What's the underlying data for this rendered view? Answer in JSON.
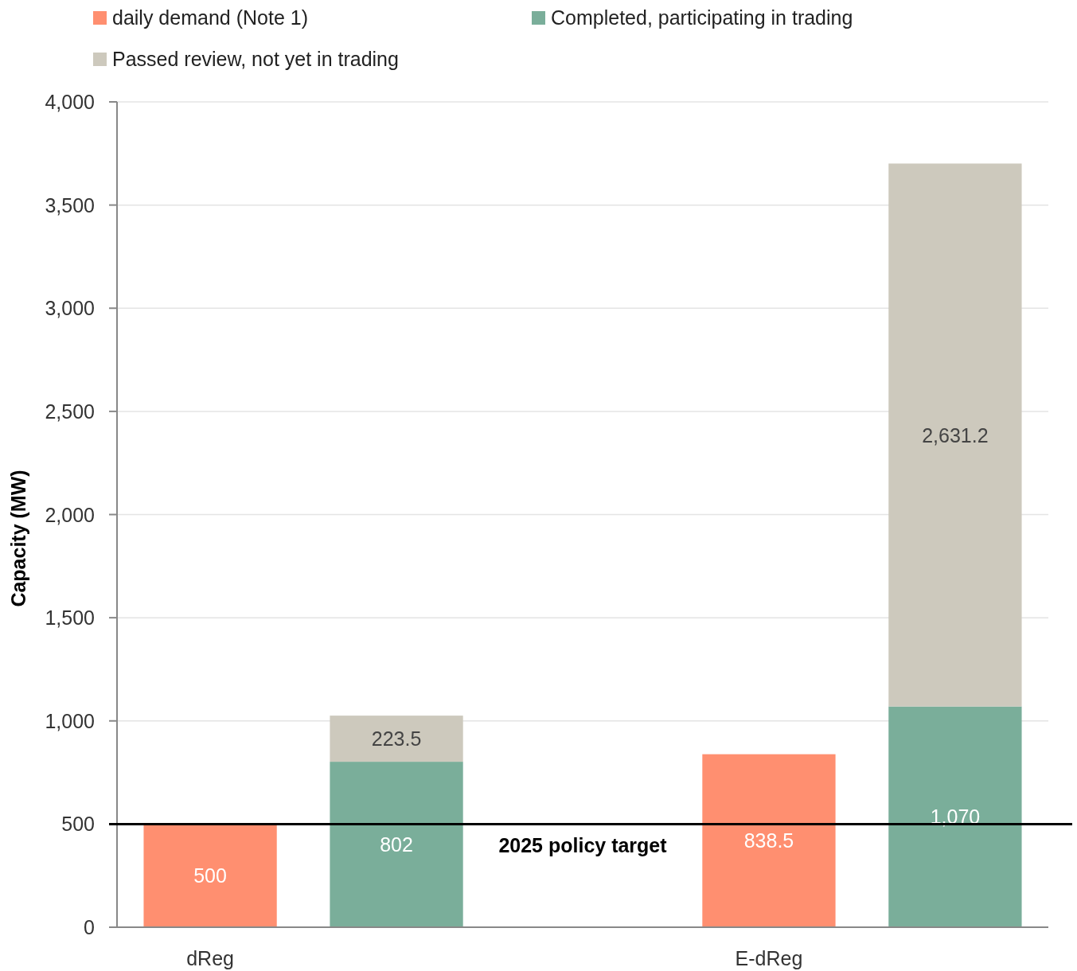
{
  "chart_data": {
    "type": "bar",
    "stacked": true,
    "ylabel": "Capacity (MW)",
    "categories": [
      "dReg",
      null,
      null,
      "E-dReg",
      null
    ],
    "series": [
      {
        "name": "daily demand (Note 1)",
        "color": "#ff8f70",
        "values": [
          500,
          null,
          null,
          838.5,
          null
        ],
        "value_labels": [
          "500",
          null,
          null,
          "838.5",
          null
        ]
      },
      {
        "name": "Completed, participating in trading",
        "color": "#7aae9a",
        "values": [
          null,
          802,
          null,
          null,
          1070
        ],
        "value_labels": [
          null,
          "802",
          null,
          null,
          "1,070"
        ]
      },
      {
        "name": "Passed review, not yet in trading",
        "color": "#cdc9bd",
        "values": [
          null,
          223.5,
          null,
          null,
          2631.2
        ],
        "value_labels": [
          null,
          "223.5",
          null,
          null,
          "2,631.2"
        ]
      }
    ],
    "ylim": [
      0,
      4000
    ],
    "yticks": [
      {
        "value": 0,
        "label": "0"
      },
      {
        "value": 500,
        "label": "500"
      },
      {
        "value": 1000,
        "label": "1,000"
      },
      {
        "value": 1500,
        "label": "1,500"
      },
      {
        "value": 2000,
        "label": "2,000"
      },
      {
        "value": 2500,
        "label": "2,500"
      },
      {
        "value": 3000,
        "label": "3,000"
      },
      {
        "value": 3500,
        "label": "3,500"
      },
      {
        "value": 4000,
        "label": "4,000"
      }
    ],
    "grid": "y",
    "legend": "top left",
    "ref_lines": [
      {
        "axis": "y",
        "value": 500,
        "label": "2025 policy target",
        "color": "#000000"
      }
    ]
  }
}
